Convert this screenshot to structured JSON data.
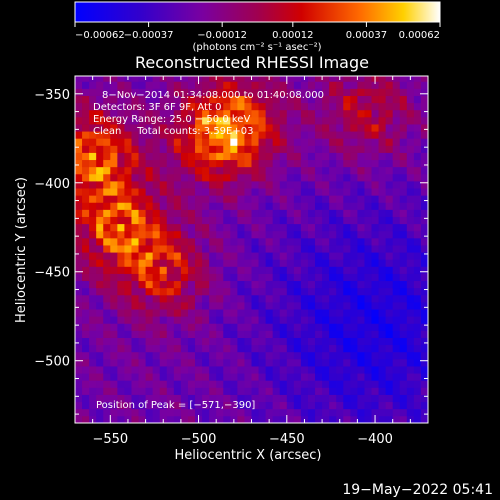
{
  "chart_data": {
    "type": "heatmap",
    "title": "Reconstructed RHESSI Image",
    "xlabel": "Heliocentric X (arcsec)",
    "ylabel": "Heliocentric Y (arcsec)",
    "xlim": [
      -570,
      -370
    ],
    "ylim": [
      -535,
      -340
    ],
    "xticks": [
      -550,
      -500,
      -450,
      -400
    ],
    "yticks": [
      -350,
      -400,
      -450,
      -500
    ],
    "xtick_labels": [
      "−550",
      "−500",
      "−450",
      "−400"
    ],
    "ytick_labels": [
      "−350",
      "−400",
      "−450",
      "−500"
    ],
    "colorbar": {
      "min": -0.00062,
      "max": 0.00062,
      "ticks": [
        -0.00062,
        -0.00037,
        -0.00012,
        0.00012,
        0.00037,
        0.00062
      ],
      "tick_labels": [
        "−0.00062",
        "−0.00037",
        "−0.00012",
        "0.00012",
        "0.00037",
        "0.00062"
      ],
      "unit_label": "(photons cm⁻² s⁻¹ asec⁻²)",
      "colormap": [
        "#0000ff",
        "#5a00b0",
        "#9a0090",
        "#c00000",
        "#ff6000",
        "#ffd000",
        "#ffffff"
      ]
    },
    "annotations": {
      "time": "8−Nov−2014 01:34:08.000 to 01:40:08.000",
      "detectors": "Detectors: 3F 6F 9F, Att 0",
      "energy": "Energy Range: 25.0 − 50.0 keV",
      "clean": "Clean     Total counts: 3.59E+03",
      "peak": "Position of Peak = [−571,−390]"
    },
    "peak": {
      "x": -571,
      "y": -390
    },
    "bright_sources": [
      {
        "x": -560,
        "y": -385,
        "strength": 1.0
      },
      {
        "x": -545,
        "y": -425,
        "strength": 0.9
      },
      {
        "x": -520,
        "y": -450,
        "strength": 0.7
      },
      {
        "x": -490,
        "y": -375,
        "strength": 0.85
      },
      {
        "x": -475,
        "y": -365,
        "strength": 0.6
      },
      {
        "x": -405,
        "y": -360,
        "strength": 0.55
      }
    ]
  },
  "footer": {
    "datestamp": "19−May−2022 05:41"
  }
}
